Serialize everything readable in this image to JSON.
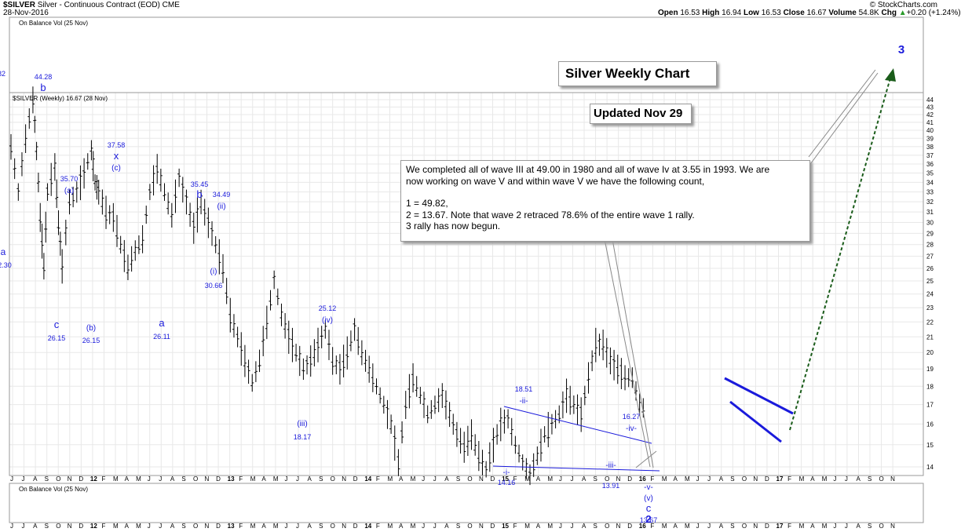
{
  "header": {
    "symbol": "$SILVER",
    "description": "Silver - Continuous Contract (EOD) CME",
    "date": "28-Nov-2016",
    "brand": "© StockCharts.com",
    "ohlc": [
      {
        "label": "Open",
        "value": "16.53"
      },
      {
        "label": "High",
        "value": "16.94"
      },
      {
        "label": "Low",
        "value": "16.53"
      },
      {
        "label": "Close",
        "value": "16.67"
      },
      {
        "label": "Volume",
        "value": "54.8K"
      },
      {
        "label": "Chg",
        "value": "+0.20 (+1.24%)"
      }
    ],
    "up_arrow": "▲"
  },
  "panels": {
    "top_indicator": "On Balance Vol (25 Nov)",
    "bottom_indicator": "On Balance Vol (25 Nov)",
    "price_legend": "$SILVER (Weekly) 16.67 (28 Nov)"
  },
  "boxes": {
    "title": "Silver Weekly Chart",
    "updated": "Updated Nov 29",
    "note_lines": [
      "We completed all of wave III at 49.00 in 1980 and all of wave Iv at 3.55 in 1993. We are",
      "now working on wave V and within wave V we have the following count,",
      "",
      "1 = 49.82,",
      "2 = 13.67. Note that wave 2 retraced 78.6% of the entire wave 1 rally.",
      "3 rally has now begun."
    ]
  },
  "chart_data": {
    "type": "ohlc",
    "title": "Silver Weekly Chart",
    "y_scale": "log",
    "ylim": [
      14,
      44
    ],
    "y_ticks": [
      14,
      15,
      16,
      17,
      18,
      19,
      20,
      21,
      22,
      23,
      24,
      25,
      26,
      27,
      28,
      29,
      30,
      31,
      32,
      33,
      34,
      35,
      36,
      37,
      38,
      39,
      40,
      41,
      42,
      43,
      44
    ],
    "x_ticks": [
      "J",
      "J",
      "A",
      "S",
      "O",
      "N",
      "D",
      "12",
      "F",
      "M",
      "A",
      "M",
      "J",
      "J",
      "A",
      "S",
      "O",
      "N",
      "D",
      "13",
      "F",
      "M",
      "A",
      "M",
      "J",
      "J",
      "A",
      "S",
      "O",
      "N",
      "D",
      "14",
      "F",
      "M",
      "A",
      "M",
      "J",
      "J",
      "A",
      "S",
      "O",
      "N",
      "D",
      "15",
      "F",
      "M",
      "A",
      "M",
      "J",
      "J",
      "A",
      "S",
      "O",
      "N",
      "D",
      "16",
      "F",
      "M",
      "A",
      "M",
      "J",
      "J",
      "A",
      "S",
      "O",
      "N",
      "D",
      "17",
      "F",
      "M",
      "A",
      "M",
      "J",
      "J",
      "A",
      "S",
      "O",
      "N"
    ],
    "price_path": [
      [
        0,
        38
      ],
      [
        2,
        33
      ],
      [
        4,
        39
      ],
      [
        6,
        44
      ],
      [
        7,
        37.5
      ],
      [
        8,
        30.5
      ],
      [
        9,
        26.2
      ],
      [
        10,
        33
      ],
      [
        12,
        35.7
      ],
      [
        13,
        30
      ],
      [
        14,
        26.2
      ],
      [
        16,
        32
      ],
      [
        18,
        33
      ],
      [
        20,
        35
      ],
      [
        22,
        37.6
      ],
      [
        23,
        34
      ],
      [
        24,
        33
      ],
      [
        26,
        31
      ],
      [
        28,
        30.5
      ],
      [
        30,
        28
      ],
      [
        32,
        26.1
      ],
      [
        34,
        27.5
      ],
      [
        36,
        28.5
      ],
      [
        38,
        33
      ],
      [
        40,
        35.5
      ],
      [
        42,
        33
      ],
      [
        44,
        30.7
      ],
      [
        46,
        34.5
      ],
      [
        48,
        32
      ],
      [
        50,
        29.5
      ],
      [
        52,
        32
      ],
      [
        54,
        30
      ],
      [
        56,
        28
      ],
      [
        58,
        26
      ],
      [
        60,
        22.5
      ],
      [
        62,
        21
      ],
      [
        64,
        19.5
      ],
      [
        66,
        18.2
      ],
      [
        68,
        19.5
      ],
      [
        70,
        22
      ],
      [
        72,
        25.1
      ],
      [
        74,
        22.5
      ],
      [
        76,
        21
      ],
      [
        78,
        20
      ],
      [
        80,
        19
      ],
      [
        82,
        19.5
      ],
      [
        84,
        20.5
      ],
      [
        86,
        21.5
      ],
      [
        88,
        19.5
      ],
      [
        90,
        19
      ],
      [
        92,
        20
      ],
      [
        94,
        21.5
      ],
      [
        96,
        20
      ],
      [
        98,
        19
      ],
      [
        100,
        18
      ],
      [
        102,
        17
      ],
      [
        104,
        16
      ],
      [
        106,
        14.2
      ],
      [
        108,
        17
      ],
      [
        110,
        18.5
      ],
      [
        112,
        17.5
      ],
      [
        114,
        16.5
      ],
      [
        116,
        17
      ],
      [
        118,
        17.5
      ],
      [
        120,
        16.5
      ],
      [
        122,
        15.5
      ],
      [
        124,
        14.9
      ],
      [
        126,
        15.5
      ],
      [
        128,
        14.5
      ],
      [
        130,
        13.9
      ],
      [
        132,
        15
      ],
      [
        134,
        16
      ],
      [
        136,
        16.27
      ],
      [
        138,
        15
      ],
      [
        140,
        14.2
      ],
      [
        142,
        13.67
      ],
      [
        144,
        14.5
      ],
      [
        146,
        15.5
      ],
      [
        148,
        16
      ],
      [
        150,
        16.5
      ],
      [
        152,
        17.5
      ],
      [
        154,
        17
      ],
      [
        156,
        16.5
      ],
      [
        158,
        18.5
      ],
      [
        160,
        20.5
      ],
      [
        162,
        20.5
      ],
      [
        164,
        19.5
      ],
      [
        166,
        19
      ],
      [
        168,
        18.5
      ],
      [
        170,
        18.5
      ],
      [
        172,
        17
      ],
      [
        174,
        16.67
      ]
    ],
    "wave_labels": [
      {
        "text": "44.28",
        "note": "b",
        "value": 44.28
      },
      {
        "text": "26.15",
        "note": "c",
        "value": 26.15
      },
      {
        "text": "35.70",
        "note": "(a)",
        "value": 35.7
      },
      {
        "text": "26.15",
        "note": "(b)",
        "value": 26.15
      },
      {
        "text": "37.58",
        "note": "x (c)",
        "value": 37.58
      },
      {
        "text": "26.11",
        "note": "a",
        "value": 26.11
      },
      {
        "text": "35.45",
        "note": "b",
        "value": 35.45
      },
      {
        "text": "34.49",
        "note": "(ii)",
        "value": 34.49
      },
      {
        "text": "30.66",
        "note": "(i)",
        "value": 30.66
      },
      {
        "text": "25.12",
        "note": "(iv)",
        "value": 25.12
      },
      {
        "text": "18.17",
        "note": "(iii)",
        "value": 18.17
      },
      {
        "text": "18.51",
        "note": "-ii-",
        "value": 18.51
      },
      {
        "text": "14.16",
        "note": "-i-",
        "value": 14.16
      },
      {
        "text": "13.91",
        "note": "-iii-",
        "value": 13.91
      },
      {
        "text": "16.27",
        "note": "-iv-",
        "value": 16.27
      },
      {
        "text": "13.67",
        "note": "-v- (v) c 2",
        "value": 13.67
      }
    ],
    "left_cut_labels": {
      "a": "a",
      "a_value": "2.30",
      "top_value": "82"
    },
    "wave3_label": "3",
    "colors": {
      "wave": "#1a1adb",
      "price": "#000000",
      "forecast": "#1a5c1a",
      "grid": "#e8e8e8"
    }
  }
}
